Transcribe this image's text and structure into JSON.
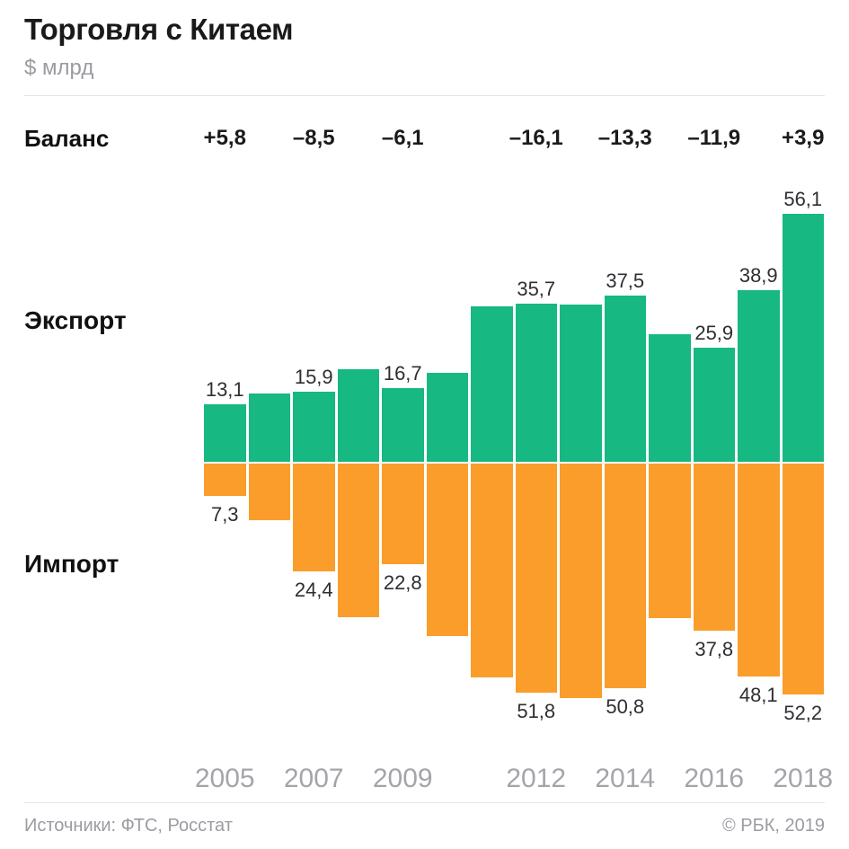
{
  "header": {
    "title": "Торговля с Китаем",
    "subtitle": "$ млрд"
  },
  "balance": {
    "label": "Баланс"
  },
  "series_labels": {
    "export": "Экспорт",
    "import": "Импорт"
  },
  "footer": {
    "sources": "Источники: ФТС, Росстат",
    "copyright": "© РБК, 2019"
  },
  "colors": {
    "export_bar": "#17b882",
    "import_bar": "#fa9d2b",
    "title_text": "#1a1a1a",
    "muted_text": "#9b9ca2",
    "tick_text": "#a4a5ab",
    "value_text": "#2e2f33",
    "divider": "#e3e3e7"
  },
  "chart_data": {
    "type": "bar",
    "title": "Торговля с Китаем",
    "unit": "$ млрд",
    "orientation": "mirrored-vertical",
    "series_names": [
      "Экспорт",
      "Импорт"
    ],
    "x_ticks": [
      "2005",
      "2007",
      "2009",
      "2012",
      "2014",
      "2016",
      "2018"
    ],
    "value_axis_range_export": [
      0,
      56.1
    ],
    "value_axis_range_import": [
      0,
      53.1
    ],
    "grid": false,
    "legend_position": "left-side-labels",
    "years": [
      {
        "year": "2005",
        "export": 13.1,
        "import": 7.3,
        "export_label": "13,1",
        "import_label": "7,3",
        "balance_label": "+5,8",
        "tick": "2005"
      },
      {
        "year": "2006",
        "export": 15.5,
        "import": 12.9
      },
      {
        "year": "2007",
        "export": 15.9,
        "import": 24.4,
        "export_label": "15,9",
        "import_label": "24,4",
        "balance_label": "–8,5",
        "tick": "2007"
      },
      {
        "year": "2008",
        "export": 21.0,
        "import": 34.8
      },
      {
        "year": "2009",
        "export": 16.7,
        "import": 22.8,
        "export_label": "16,7",
        "import_label": "22,8",
        "balance_label": "–6,1",
        "tick": "2009"
      },
      {
        "year": "2010",
        "export": 20.2,
        "import": 39.0
      },
      {
        "year": "2011",
        "export": 35.2,
        "import": 48.4
      },
      {
        "year": "2012",
        "export": 35.7,
        "import": 51.8,
        "export_label": "35,7",
        "import_label": "51,8",
        "balance_label": "–16,1",
        "tick": "2012"
      },
      {
        "year": "2013",
        "export": 35.6,
        "import": 53.1
      },
      {
        "year": "2014",
        "export": 37.5,
        "import": 50.8,
        "export_label": "37,5",
        "import_label": "50,8",
        "balance_label": "–13,3",
        "tick": "2014"
      },
      {
        "year": "2015",
        "export": 28.8,
        "import": 35.0
      },
      {
        "year": "2016",
        "export": 25.9,
        "import": 37.8,
        "export_label": "25,9",
        "import_label": "37,8",
        "balance_label": "–11,9",
        "tick": "2016"
      },
      {
        "year": "2017",
        "export": 38.9,
        "import": 48.1,
        "export_label": "38,9",
        "import_label": "48,1"
      },
      {
        "year": "2018",
        "export": 56.1,
        "import": 52.2,
        "export_label": "56,1",
        "import_label": "52,2",
        "balance_label": "+3,9",
        "tick": "2018"
      }
    ]
  }
}
